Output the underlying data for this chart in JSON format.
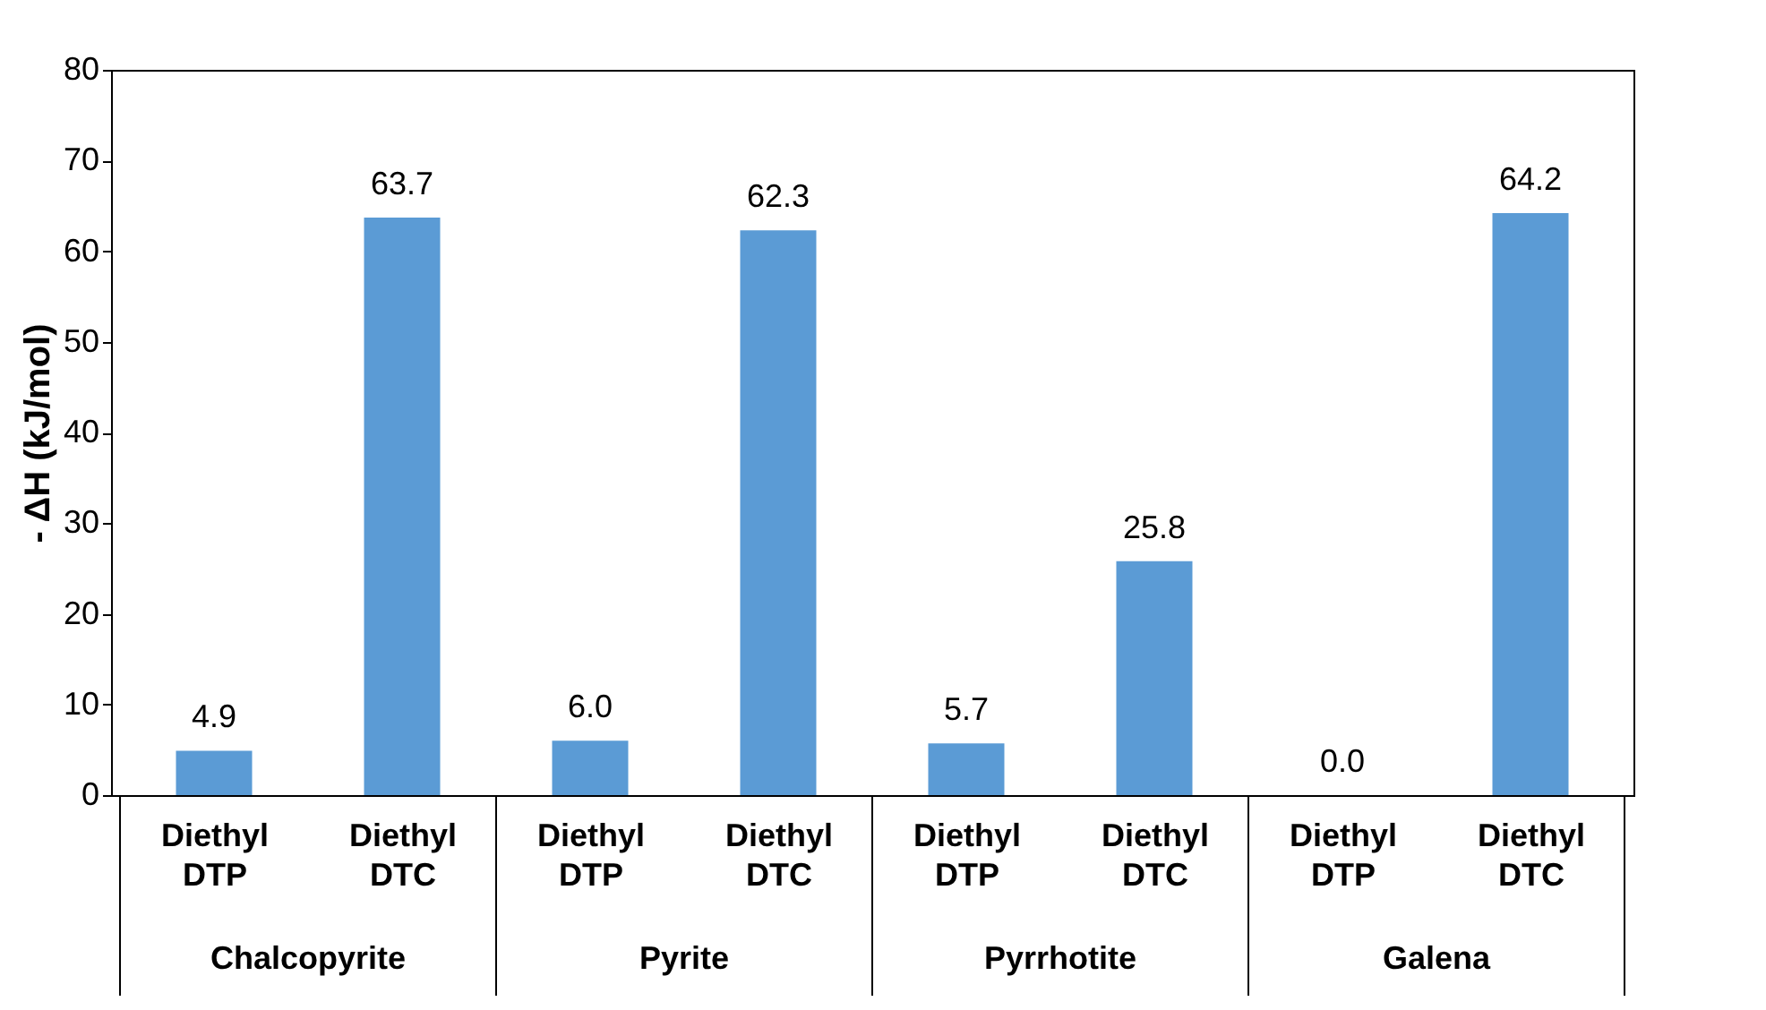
{
  "chart_data": {
    "type": "bar",
    "ylabel": "- ΔH (kJ/mol)",
    "categories": [
      "Diethyl DTP",
      "Diethyl DTC",
      "Diethyl DTP",
      "Diethyl DTC",
      "Diethyl DTP",
      "Diethyl DTC",
      "Diethyl DTP",
      "Diethyl DTC"
    ],
    "values": [
      4.9,
      63.7,
      6.0,
      62.3,
      5.7,
      25.8,
      0.0,
      64.2
    ],
    "value_labels": [
      "4.9",
      "63.7",
      "6.0",
      "62.3",
      "5.7",
      "25.8",
      "0.0",
      "64.2"
    ],
    "color": "#5b9bd5",
    "annotations": [
      "Chalcopyrite",
      "Pyrite",
      "Pyrrhotite",
      "Galena"
    ],
    "ylim": [
      0,
      80
    ],
    "yticks": [
      0,
      10,
      20,
      30,
      40,
      50,
      60,
      70,
      80
    ],
    "grid": false
  }
}
